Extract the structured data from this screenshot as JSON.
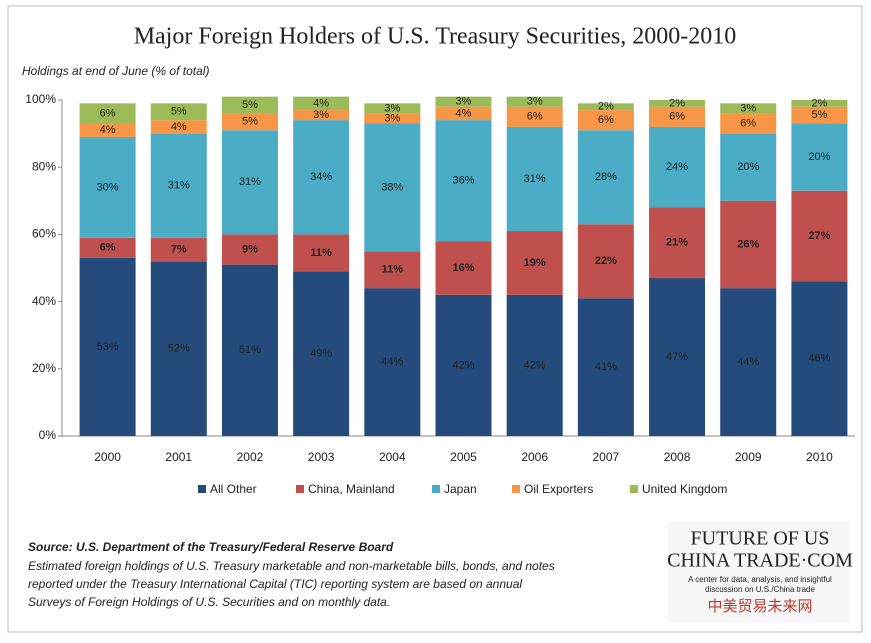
{
  "chart_data": {
    "type": "stacked-bar",
    "title": "Major Foreign Holders of U.S. Treasury Securities, 2000-2010",
    "y_label": "Holdings at end of June (% of total)",
    "categories": [
      "2000",
      "2001",
      "2002",
      "2003",
      "2004",
      "2005",
      "2006",
      "2007",
      "2008",
      "2009",
      "2010"
    ],
    "series": [
      {
        "name": "All Other",
        "color": "#254a7c",
        "values": [
          53,
          52,
          51,
          49,
          44,
          42,
          42,
          41,
          47,
          44,
          46
        ],
        "value_labels": [
          "53%",
          "52%",
          "51%",
          "49%",
          "44%",
          "42%",
          "42%",
          "41%",
          "47%",
          "44%",
          "46%"
        ]
      },
      {
        "name": "China, Mainland",
        "color": "#c0504d",
        "values": [
          6,
          7,
          9,
          11,
          11,
          16,
          19,
          22,
          21,
          26,
          27
        ],
        "value_labels": [
          "6%",
          "7%",
          "9%",
          "11%",
          "11%",
          "16%",
          "19%",
          "22%",
          "21%",
          "26%",
          "27%"
        ]
      },
      {
        "name": "Japan",
        "color": "#4bacc6",
        "values": [
          30,
          31,
          31,
          34,
          38,
          36,
          31,
          28,
          24,
          20,
          20
        ],
        "value_labels": [
          "30%",
          "31%",
          "31%",
          "34%",
          "38%",
          "36%",
          "31%",
          "28%",
          "24%",
          "20%",
          "20%"
        ]
      },
      {
        "name": "Oil Exporters",
        "color": "#f79646",
        "values": [
          4,
          4,
          5,
          3,
          3,
          4,
          6,
          6,
          6,
          6,
          5
        ],
        "value_labels": [
          "4%",
          "4%",
          "5%",
          "3%",
          "3%",
          "4%",
          "6%",
          "6%",
          "6%",
          "6%",
          "5%"
        ]
      },
      {
        "name": "United Kingdom",
        "color": "#9bbb59",
        "values": [
          6,
          5,
          5,
          4,
          3,
          3,
          3,
          2,
          2,
          3,
          2
        ],
        "value_labels": [
          "6%",
          "5%",
          "5%",
          "4%",
          "3%",
          "3%",
          "3%",
          "2%",
          "2%",
          "3%",
          "2%"
        ]
      }
    ],
    "ylim": [
      0,
      100
    ],
    "yticks": [
      {
        "value": 0,
        "label": "0%"
      },
      {
        "value": 20,
        "label": "20%"
      },
      {
        "value": 40,
        "label": "40%"
      },
      {
        "value": 60,
        "label": "60%"
      },
      {
        "value": 80,
        "label": "80%"
      },
      {
        "value": 100,
        "label": "100%"
      }
    ],
    "grid": false,
    "legend": "bottom",
    "source": "Source: U.S. Department of the Treasury/Federal Reserve Board",
    "note": [
      "Estimated foreign holdings of U.S. Treasury marketable and non-marketable bills, bonds, and notes",
      "reported under the Treasury International Capital (TIC) reporting system are based on annual",
      "Surveys of Foreign Holdings of U.S. Securities and on monthly data."
    ]
  },
  "logo": {
    "line1": "FUTURE OF US",
    "line2": "CHINA TRADE·COM",
    "tagline": [
      "A center for data, analysis, and insightful",
      "discussion on U.S./China trade"
    ],
    "chinese": "中美贸易未来网"
  }
}
